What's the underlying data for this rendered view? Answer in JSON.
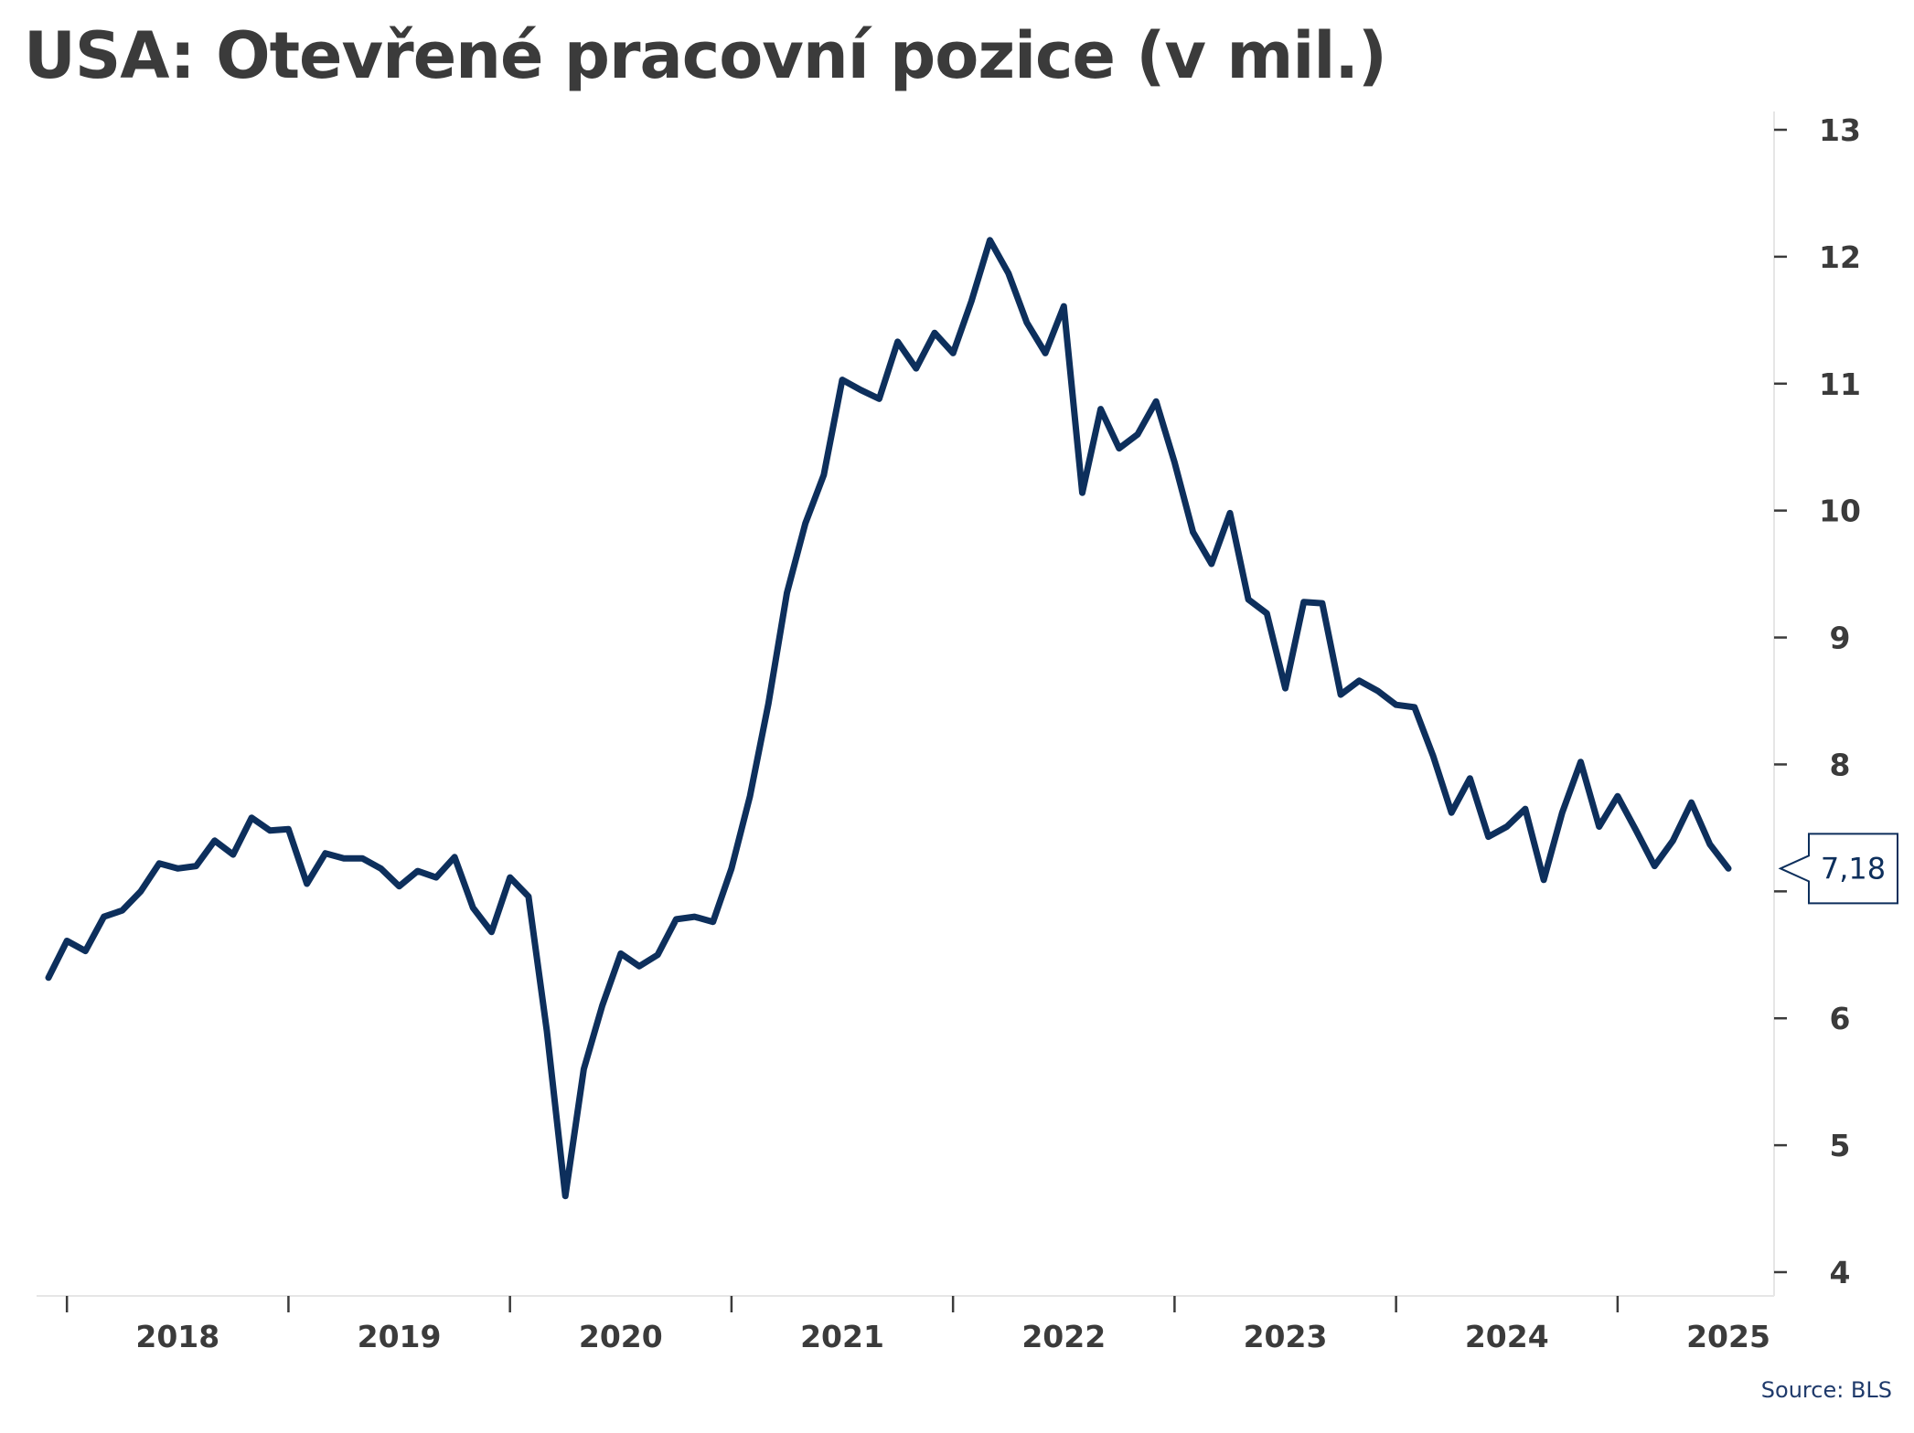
{
  "chart_data": {
    "type": "line",
    "title": "USA: Otevřené pracovní pozice (v mil.)",
    "source": "Source: BLS",
    "xlabel": "",
    "ylabel": "",
    "ylim": [
      4,
      13
    ],
    "yticks": [
      "4",
      "5",
      "6",
      "7",
      "8",
      "9",
      "10",
      "11",
      "12",
      "13"
    ],
    "xticks": [
      "2018",
      "2019",
      "2020",
      "2021",
      "2022",
      "2023",
      "2024",
      "2025"
    ],
    "x_start": "2017-12",
    "y_axis_position": "right",
    "grid": false,
    "last_value_label": "7,18",
    "colors": {
      "line": "#0d2f5c",
      "title": "#3b3b3b",
      "source": "#1f3a6b"
    },
    "series": [
      {
        "values": [
          6.32,
          6.61,
          6.53,
          6.8,
          6.85,
          7.0,
          7.22,
          7.18,
          7.2,
          7.4,
          7.29,
          7.58,
          7.48,
          7.49,
          7.06,
          7.3,
          7.26,
          7.26,
          7.18,
          7.04,
          7.16,
          7.11,
          7.27,
          6.87,
          6.68,
          7.11,
          6.96,
          5.9,
          4.6,
          5.6,
          6.1,
          6.51,
          6.41,
          6.5,
          6.78,
          6.8,
          6.76,
          7.18,
          7.75,
          8.48,
          9.35,
          9.9,
          10.28,
          11.03,
          10.95,
          10.88,
          11.33,
          11.12,
          11.4,
          11.24,
          11.65,
          12.13,
          11.87,
          11.48,
          11.24,
          11.61,
          10.14,
          10.8,
          10.49,
          10.6,
          10.86,
          10.38,
          9.83,
          9.58,
          9.98,
          9.3,
          9.19,
          8.6,
          9.28,
          9.27,
          8.55,
          8.66,
          8.58,
          8.47,
          8.45,
          8.07,
          7.62,
          7.89,
          7.43,
          7.51,
          7.65,
          7.09,
          7.62,
          8.02,
          7.51,
          7.75,
          7.48,
          7.2,
          7.4,
          7.7,
          7.37,
          7.18
        ]
      }
    ]
  }
}
